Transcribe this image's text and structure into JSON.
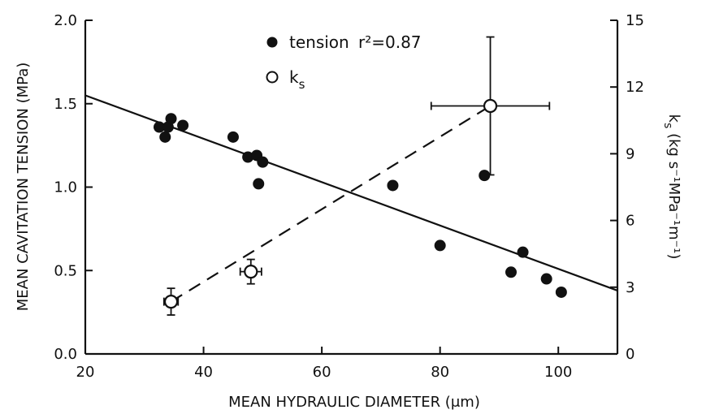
{
  "chart_data": {
    "type": "scatter",
    "xlabel": "MEAN HYDRAULIC DIAMETER (μm)",
    "ylabel": "MEAN CAVITATION TENSION (MPa)",
    "y2label": "k",
    "y2label_sub": "s",
    "y2label_unit": "(kg s⁻¹MPa⁻¹m⁻¹)",
    "xlim": [
      20,
      110
    ],
    "ylim": [
      0,
      2.0
    ],
    "y2lim": [
      0,
      15
    ],
    "xticks": [
      20,
      40,
      60,
      80,
      100
    ],
    "yticks": [
      0.0,
      0.5,
      1.0,
      1.5,
      2.0
    ],
    "y2ticks": [
      0,
      3,
      6,
      9,
      12,
      15
    ],
    "xtick_labels": [
      "20",
      "40",
      "60",
      "80",
      "100"
    ],
    "ytick_labels": [
      "0.0",
      "0.5",
      "1.0",
      "1.5",
      "2.0"
    ],
    "y2tick_labels": [
      "0",
      "3",
      "6",
      "9",
      "12",
      "15"
    ],
    "grid": false,
    "legend_position": "top-center",
    "series": [
      {
        "name": "tension",
        "legend_label": "tension",
        "annotation": "r²=0.87",
        "axis": "left",
        "marker": "filled-circle",
        "x": [
          32.5,
          33.5,
          34.0,
          34.5,
          36.5,
          45.0,
          47.5,
          49.0,
          49.3,
          50.0,
          72.0,
          80.0,
          87.5,
          92.0,
          94.0,
          98.0,
          100.5
        ],
        "y": [
          1.36,
          1.3,
          1.36,
          1.41,
          1.37,
          1.3,
          1.18,
          1.19,
          1.02,
          1.15,
          1.01,
          0.65,
          1.07,
          0.49,
          0.61,
          0.45,
          0.37
        ],
        "fit": {
          "style": "solid",
          "x": [
            20,
            110
          ],
          "y": [
            1.55,
            0.38
          ]
        }
      },
      {
        "name": "ks",
        "legend_label": "k",
        "legend_sub": "s",
        "axis": "right",
        "marker": "open-circle",
        "x": [
          34.5,
          48.0,
          88.5
        ],
        "y": [
          2.35,
          3.7,
          11.15
        ],
        "xerr": [
          1.2,
          1.8,
          10.0
        ],
        "yerr": [
          0.6,
          0.55,
          3.1
        ],
        "fit": {
          "style": "dashed",
          "x": [
            34.5,
            88.5
          ],
          "y": [
            2.35,
            11.15
          ]
        }
      }
    ]
  }
}
